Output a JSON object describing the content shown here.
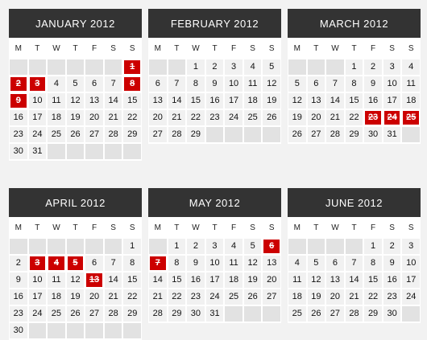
{
  "weekdays": [
    "M",
    "T",
    "W",
    "T",
    "F",
    "S",
    "S"
  ],
  "months": [
    {
      "title": "JANUARY 2012",
      "start_offset": 6,
      "days": 31,
      "blocked": [
        1,
        2,
        3,
        8,
        9
      ]
    },
    {
      "title": "FEBRUARY 2012",
      "start_offset": 2,
      "days": 29,
      "blocked": []
    },
    {
      "title": "MARCH 2012",
      "start_offset": 3,
      "days": 31,
      "blocked": [
        23,
        24,
        25
      ]
    },
    {
      "title": "APRIL 2012",
      "start_offset": 6,
      "days": 30,
      "blocked": [
        3,
        4,
        5,
        13
      ]
    },
    {
      "title": "MAY 2012",
      "start_offset": 1,
      "days": 31,
      "blocked": [
        6,
        7
      ]
    },
    {
      "title": "JUNE 2012",
      "start_offset": 4,
      "days": 30,
      "blocked": []
    }
  ],
  "colors": {
    "header_bg": "#333333",
    "blocked_bg": "#cc0000",
    "cell_bg": "#f1f1f1",
    "empty_bg": "#e2e2e2"
  }
}
